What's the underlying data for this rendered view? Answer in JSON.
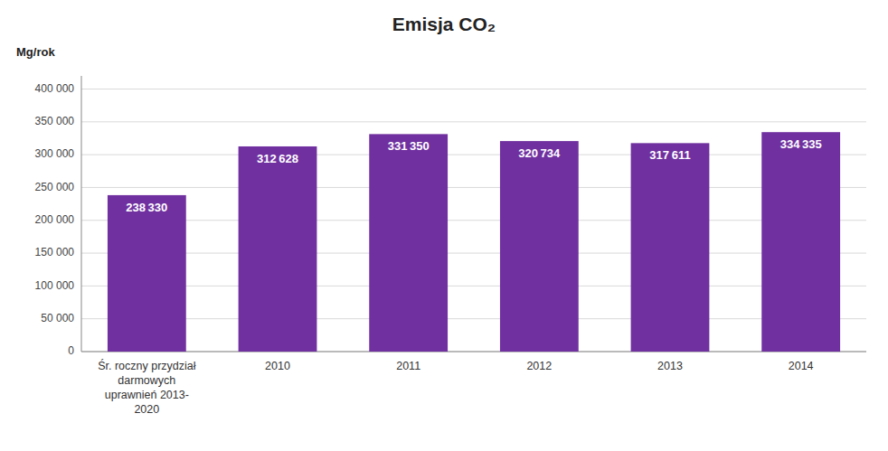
{
  "chart_data": {
    "type": "bar",
    "title": "Emisja CO₂",
    "y_label": "Mg/rok",
    "categories": [
      "Śr. roczny przydział\ndarmowych\nuprawnień 2013-\n2020",
      "2010",
      "2011",
      "2012",
      "2013",
      "2014"
    ],
    "values": [
      238330,
      312628,
      331350,
      320734,
      317611,
      334335
    ],
    "value_labels": [
      "238 330",
      "312 628",
      "331 350",
      "320 734",
      "317 611",
      "334 335"
    ],
    "data_labels": true,
    "color": "#7030A0",
    "ylim": [
      0,
      420000
    ],
    "yticks": [
      0,
      {
        "value": 50000,
        "label": "50 000"
      },
      {
        "value": 100000,
        "label": "100 000"
      },
      {
        "value": 150000,
        "label": "150 000"
      },
      {
        "value": 200000,
        "label": "200 000"
      },
      {
        "value": 250000,
        "label": "250 000"
      },
      {
        "value": 300000,
        "label": "300 000"
      },
      {
        "value": 350000,
        "label": "350 000"
      },
      {
        "value": 400000,
        "label": "400 000"
      }
    ],
    "grid": true
  }
}
